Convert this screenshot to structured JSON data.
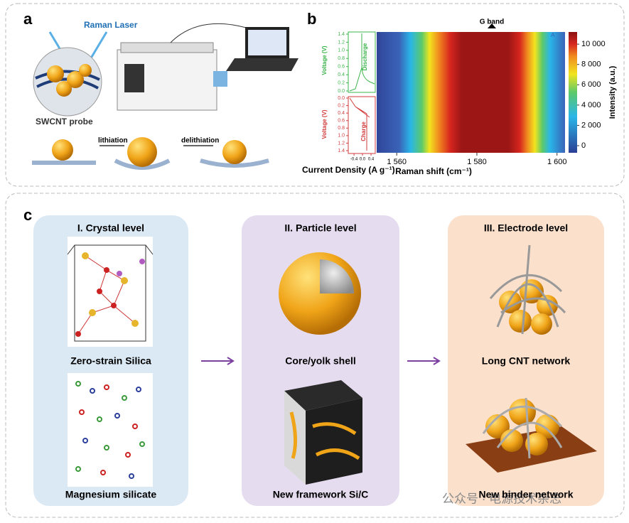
{
  "panel_a": {
    "label": "a",
    "laser": "Raman Laser",
    "probe": "SWCNT probe",
    "lithiation": "lithiation",
    "delithiation": "delithiation"
  },
  "panel_b": {
    "label": "b",
    "annotation": "G band",
    "x_label": "Raman shift (cm⁻¹)",
    "xlim": [
      1555,
      1602
    ],
    "xticks": [
      {
        "value": 1560,
        "label": "1 560"
      },
      {
        "value": 1580,
        "label": "1 580"
      },
      {
        "value": 1600,
        "label": "1 600"
      }
    ],
    "colorbar_label": "Intensity (a.u.)",
    "clim": [
      -700,
      11200
    ],
    "cticks": [
      0,
      {
        "value": 2000,
        "label": "2 000"
      },
      {
        "value": 4000,
        "label": "4 000"
      },
      {
        "value": 6000,
        "label": "6 000"
      },
      {
        "value": 8000,
        "label": "8 000"
      },
      {
        "value": 10000,
        "label": "10 000"
      }
    ],
    "legend": "A",
    "current_label": "Current Density (A g⁻¹)",
    "current_lim": [
      -0.67,
      0.6
    ],
    "current_ticks": [
      -0.4,
      {
        "value": 0,
        "label": "0.0"
      },
      0.4
    ],
    "voltage_label": "Voltage (V)",
    "voltage_lim": [
      0,
      1.4
    ],
    "voltage_ticks": [
      1.4,
      1.2,
      {
        "value": 1,
        "label": "1.0"
      },
      0.8,
      0.6,
      0.4,
      0.2,
      {
        "value": 0,
        "label": "0.0"
      }
    ],
    "discharge": "Discharge",
    "charge": "Charge"
  },
  "panel_c": {
    "label": "c",
    "levels": [
      {
        "title": "I. Crystal level",
        "items": [
          "Zero-strain Silica",
          "Magnesium silicate"
        ]
      },
      {
        "title": "II. Particle level",
        "items": [
          "Core/yolk shell",
          "New framework Si/C"
        ]
      },
      {
        "title": "III. Electrode level",
        "items": [
          "Long CNT network",
          "New binder network"
        ]
      }
    ]
  },
  "watermark": "公众号 · 电源技术杂志"
}
